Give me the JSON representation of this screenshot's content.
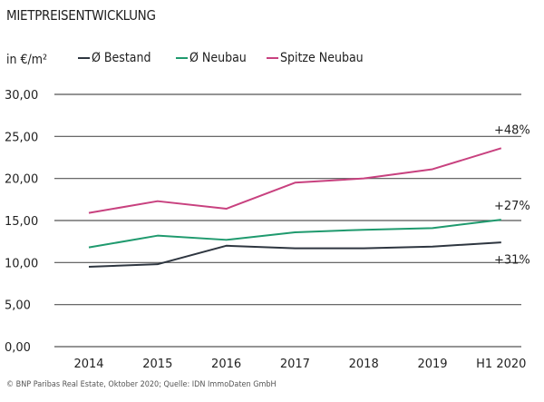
{
  "chart_data": {
    "type": "line",
    "title": "MIETPREISENTWICKLUNG",
    "ylabel": "in €/m²",
    "categories": [
      "2014",
      "2015",
      "2016",
      "2017",
      "2018",
      "2019",
      "H1 2020"
    ],
    "ylim": [
      0,
      30
    ],
    "yticks": [
      "0,00",
      "5,00",
      "10,00",
      "15,00",
      "20,00",
      "25,00",
      "30,00"
    ],
    "grid": true,
    "legend_position": "top",
    "series": [
      {
        "name": "Ø Bestand",
        "color": "#2e3640",
        "values": [
          9.5,
          9.8,
          12.0,
          11.7,
          11.7,
          11.9,
          12.4
        ],
        "annotation": "+31%"
      },
      {
        "name": "Ø Neubau",
        "color": "#1f9a6e",
        "values": [
          11.8,
          13.2,
          12.7,
          13.6,
          13.9,
          14.1,
          15.1
        ],
        "annotation": "+27%"
      },
      {
        "name": "Spitze Neubau",
        "color": "#c8417f",
        "values": [
          15.9,
          17.3,
          16.4,
          19.5,
          20.0,
          21.1,
          23.6
        ],
        "annotation": "+48%"
      }
    ]
  },
  "source": "© BNP Paribas Real Estate, Oktober 2020; Quelle: IDN ImmoDaten GmbH"
}
